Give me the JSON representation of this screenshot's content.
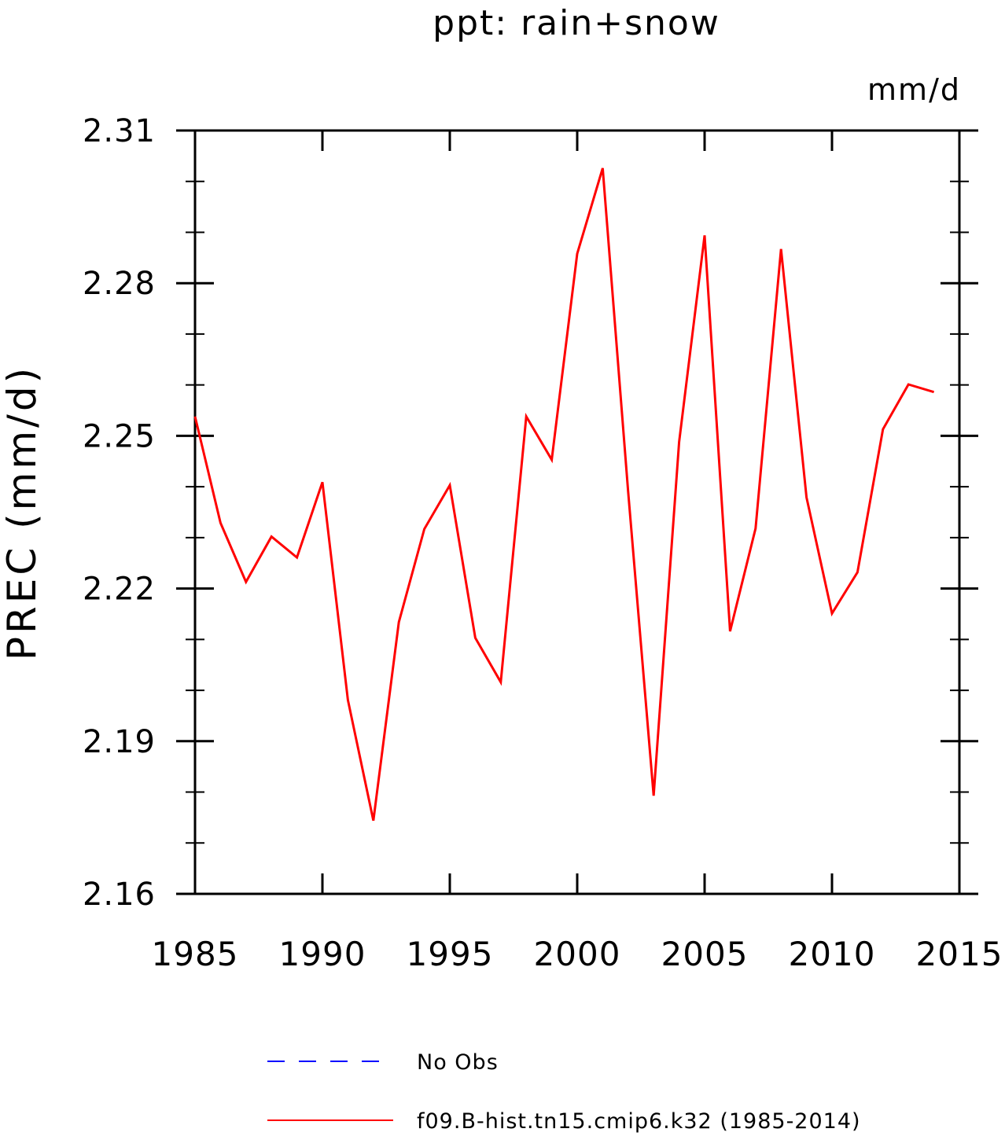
{
  "chart_data": {
    "type": "line",
    "title": "ppt: rain+snow",
    "units": "mm/d",
    "ylabel": "PREC   (mm/d)",
    "xlabel": "",
    "xlim": [
      1985,
      2015
    ],
    "ylim": [
      2.16,
      2.31
    ],
    "x_ticks": [
      "1985",
      "1990",
      "1995",
      "2000",
      "2005",
      "2010",
      "2015"
    ],
    "y_ticks": [
      "2.16",
      "2.19",
      "2.22",
      "2.25",
      "2.28",
      "2.31"
    ],
    "grid": false,
    "legend_position": "bottom",
    "legend": [
      {
        "label": "No Obs",
        "color": "#0000ff",
        "style": "dashed"
      },
      {
        "label": "f09.B-hist.tn15.cmip6.k32 (1985-2014)",
        "color": "#ff0000",
        "style": "solid"
      }
    ],
    "series": [
      {
        "name": "f09.B-hist.tn15.cmip6.k32 (1985-2014)",
        "color": "#ff0000",
        "x": [
          1985,
          1986,
          1987,
          1988,
          1989,
          1990,
          1991,
          1992,
          1993,
          1994,
          1995,
          1996,
          1997,
          1998,
          1999,
          2000,
          2001,
          2002,
          2003,
          2004,
          2005,
          2006,
          2007,
          2008,
          2009,
          2010,
          2011,
          2012,
          2013,
          2014
        ],
        "values": [
          2.2538,
          2.2329,
          2.2213,
          2.2302,
          2.2261,
          2.2409,
          2.1981,
          2.1744,
          2.2134,
          2.2317,
          2.2403,
          2.2103,
          2.2016,
          2.2538,
          2.2453,
          2.2858,
          2.3026,
          2.239,
          2.1793,
          2.2488,
          2.2894,
          2.2116,
          2.2318,
          2.2867,
          2.2379,
          2.2151,
          2.2232,
          2.2513,
          2.2601,
          2.2586
        ]
      }
    ]
  }
}
